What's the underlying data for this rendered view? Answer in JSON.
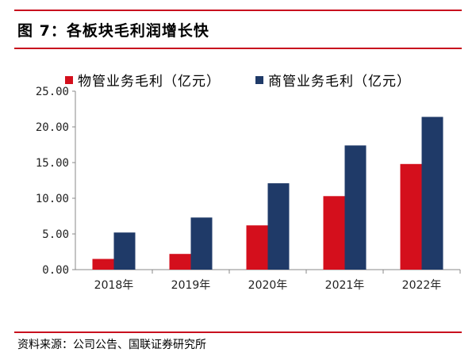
{
  "figure": {
    "title": "图 7：各板块毛利润增长快",
    "source": "资料来源：公司公告、国联证券研究所"
  },
  "colors": {
    "series1": "#d40f1c",
    "series2": "#1f3a68",
    "rule": "#c8101e"
  },
  "chart_data": {
    "type": "bar",
    "categories": [
      "2018年",
      "2019年",
      "2020年",
      "2021年",
      "2022年"
    ],
    "series": [
      {
        "name": "物管业务毛利（亿元）",
        "values": [
          1.5,
          2.2,
          6.2,
          10.3,
          14.8
        ]
      },
      {
        "name": "商管业务毛利（亿元）",
        "values": [
          5.2,
          7.3,
          12.1,
          17.4,
          21.4
        ]
      }
    ],
    "yticks": [
      "0.00",
      "5.00",
      "10.00",
      "15.00",
      "20.00",
      "25.00"
    ],
    "ylim": [
      0,
      25
    ],
    "legend_position": "top",
    "grid": false
  }
}
